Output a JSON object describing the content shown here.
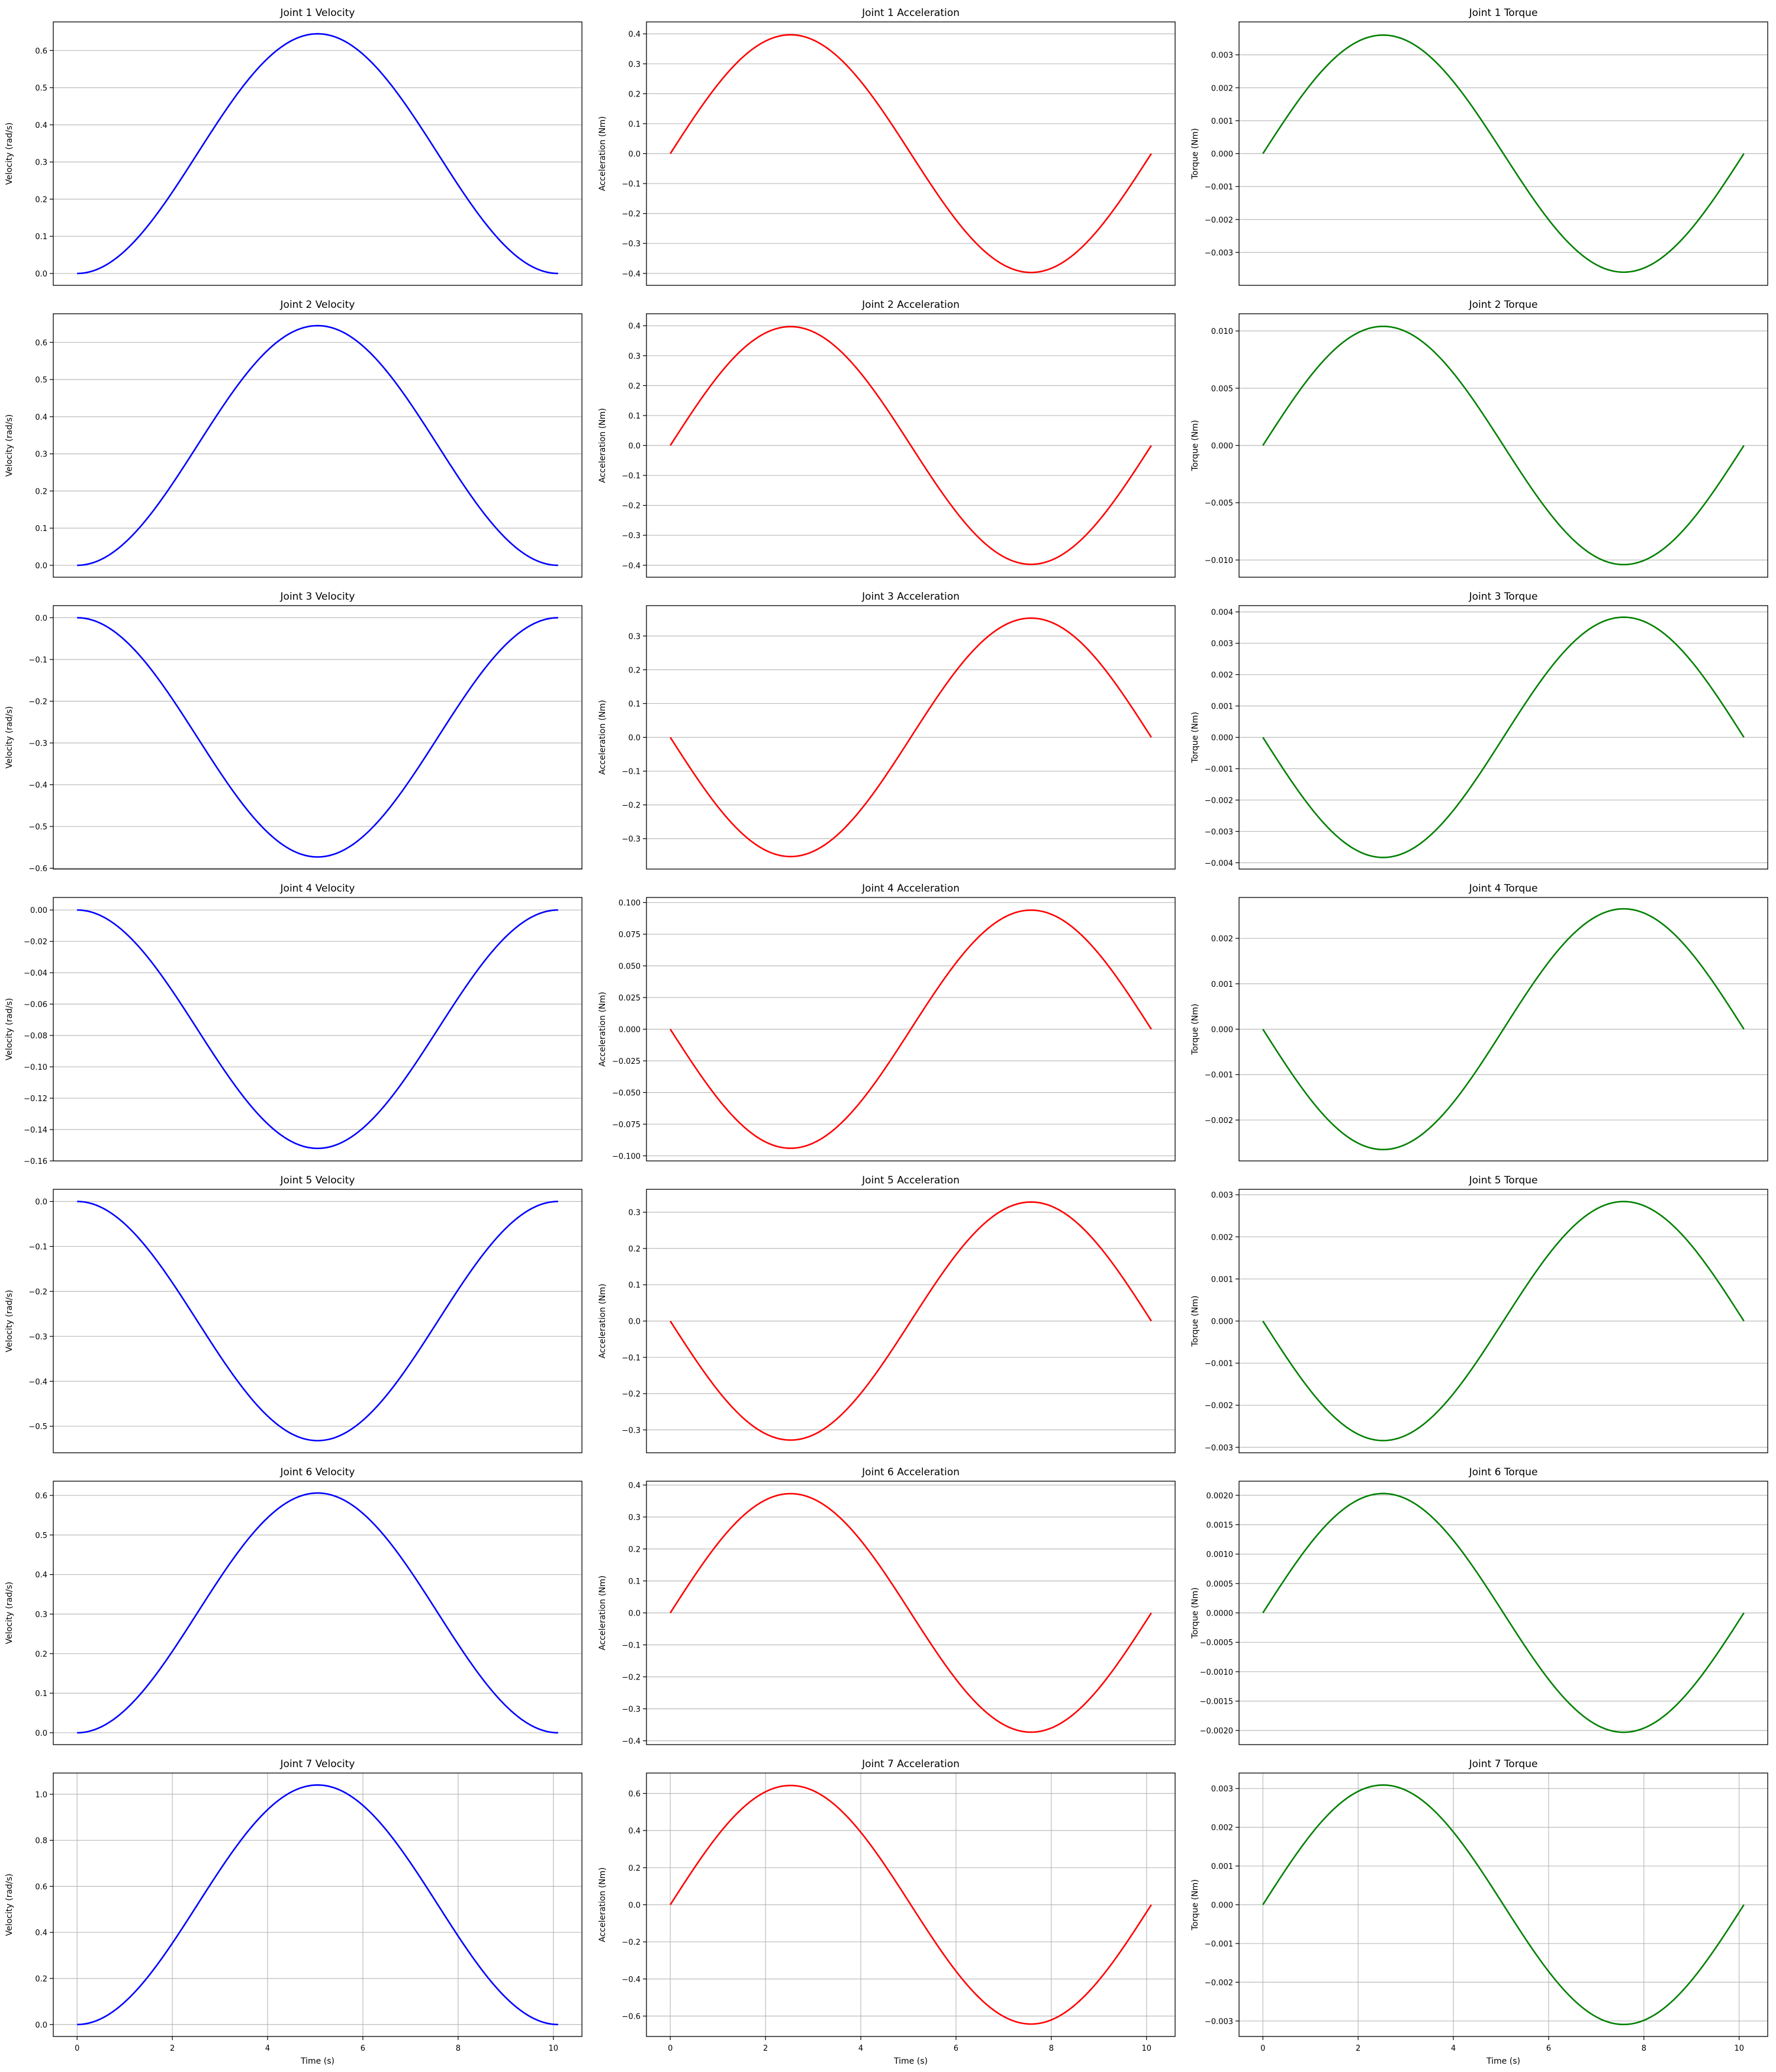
{
  "chart_data": {
    "type": "line",
    "layout": "7 rows x 3 columns",
    "sharex": true,
    "grid": true,
    "x_label_bottom_row": "Time (s)",
    "x_ticks": [
      0,
      2,
      4,
      6,
      8,
      10
    ],
    "xlim": [
      -0.5,
      10.6
    ],
    "x_domain": [
      0,
      10.1
    ],
    "colors": {
      "velocity": "#0000ff",
      "acceleration": "#ff0000",
      "torque": "#008000"
    },
    "panels": [
      {
        "title": "Joint 1 Velocity",
        "ylabel": "Velocity (rad/s)",
        "shape": "velocity_bump",
        "peak": 0.645,
        "ylim": [
          -0.032,
          0.677
        ],
        "yticks": [
          "0.0",
          "0.1",
          "0.2",
          "0.3",
          "0.4",
          "0.5",
          "0.6"
        ],
        "color": "#0000ff"
      },
      {
        "title": "Joint 1 Acceleration",
        "ylabel": "Acceleration (Nm)",
        "shape": "sine_cycle",
        "peak": 0.397,
        "ylim": [
          -0.44,
          0.44
        ],
        "yticks": [
          "−0.4",
          "−0.3",
          "−0.2",
          "−0.1",
          "0.0",
          "0.1",
          "0.2",
          "0.3",
          "0.4"
        ],
        "color": "#ff0000"
      },
      {
        "title": "Joint 1 Torque",
        "ylabel": "Torque (Nm)",
        "shape": "sine_cycle",
        "peak": 0.0036,
        "ylim": [
          -0.004,
          0.004
        ],
        "yticks": [
          "−0.003",
          "−0.002",
          "−0.001",
          "0.000",
          "0.001",
          "0.002",
          "0.003"
        ],
        "color": "#008000"
      },
      {
        "title": "Joint 2 Velocity",
        "ylabel": "Velocity (rad/s)",
        "shape": "velocity_bump",
        "peak": 0.645,
        "ylim": [
          -0.032,
          0.677
        ],
        "yticks": [
          "0.0",
          "0.1",
          "0.2",
          "0.3",
          "0.4",
          "0.5",
          "0.6"
        ],
        "color": "#0000ff"
      },
      {
        "title": "Joint 2 Acceleration",
        "ylabel": "Acceleration (Nm)",
        "shape": "sine_cycle",
        "peak": 0.397,
        "ylim": [
          -0.44,
          0.44
        ],
        "yticks": [
          "−0.4",
          "−0.3",
          "−0.2",
          "−0.1",
          "0.0",
          "0.1",
          "0.2",
          "0.3",
          "0.4"
        ],
        "color": "#ff0000"
      },
      {
        "title": "Joint 2 Torque",
        "ylabel": "Torque (Nm)",
        "shape": "sine_cycle",
        "peak": 0.0104,
        "ylim": [
          -0.0115,
          0.0115
        ],
        "yticks": [
          "−0.010",
          "−0.005",
          "0.000",
          "0.005",
          "0.010"
        ],
        "color": "#008000"
      },
      {
        "title": "Joint 3 Velocity",
        "ylabel": "Velocity (rad/s)",
        "shape": "velocity_bump",
        "peak": -0.573,
        "ylim": [
          -0.602,
          0.029
        ],
        "yticks": [
          "−0.6",
          "−0.5",
          "−0.4",
          "−0.3",
          "−0.2",
          "−0.1",
          "0.0"
        ],
        "color": "#0000ff"
      },
      {
        "title": "Joint 3 Acceleration",
        "ylabel": "Acceleration (Nm)",
        "shape": "sine_cycle",
        "peak": -0.353,
        "ylim": [
          -0.39,
          0.39
        ],
        "yticks": [
          "−0.3",
          "−0.2",
          "−0.1",
          "0.0",
          "0.1",
          "0.2",
          "0.3"
        ],
        "color": "#ff0000"
      },
      {
        "title": "Joint 3 Torque",
        "ylabel": "Torque (Nm)",
        "shape": "sine_cycle",
        "peak": -0.00383,
        "ylim": [
          -0.0042,
          0.0042
        ],
        "yticks": [
          "−0.004",
          "−0.003",
          "−0.002",
          "−0.001",
          "0.000",
          "0.001",
          "0.002",
          "0.003",
          "0.004"
        ],
        "color": "#008000"
      },
      {
        "title": "Joint 4 Velocity",
        "ylabel": "Velocity (rad/s)",
        "shape": "velocity_bump",
        "peak": -0.152,
        "ylim": [
          -0.16,
          0.008
        ],
        "yticks": [
          "−0.16",
          "−0.14",
          "−0.12",
          "−0.10",
          "−0.08",
          "−0.06",
          "−0.04",
          "−0.02",
          "0.00"
        ],
        "color": "#0000ff"
      },
      {
        "title": "Joint 4 Acceleration",
        "ylabel": "Acceleration (Nm)",
        "shape": "sine_cycle",
        "peak": -0.094,
        "ylim": [
          -0.104,
          0.104
        ],
        "yticks": [
          "−0.100",
          "−0.075",
          "−0.050",
          "−0.025",
          "0.000",
          "0.025",
          "0.050",
          "0.075",
          "0.100"
        ],
        "color": "#ff0000"
      },
      {
        "title": "Joint 4 Torque",
        "ylabel": "Torque (Nm)",
        "shape": "sine_cycle",
        "peak": -0.00265,
        "ylim": [
          -0.0029,
          0.0029
        ],
        "yticks": [
          "−0.002",
          "−0.001",
          "0.000",
          "0.001",
          "0.002"
        ],
        "color": "#008000"
      },
      {
        "title": "Joint 5 Velocity",
        "ylabel": "Velocity (rad/s)",
        "shape": "velocity_bump",
        "peak": -0.532,
        "ylim": [
          -0.559,
          0.027
        ],
        "yticks": [
          "−0.5",
          "−0.4",
          "−0.3",
          "−0.2",
          "−0.1",
          "0.0"
        ],
        "color": "#0000ff"
      },
      {
        "title": "Joint 5 Acceleration",
        "ylabel": "Acceleration (Nm)",
        "shape": "sine_cycle",
        "peak": -0.328,
        "ylim": [
          -0.363,
          0.363
        ],
        "yticks": [
          "−0.3",
          "−0.2",
          "−0.1",
          "0.0",
          "0.1",
          "0.2",
          "0.3"
        ],
        "color": "#ff0000"
      },
      {
        "title": "Joint 5 Torque",
        "ylabel": "Torque (Nm)",
        "shape": "sine_cycle",
        "peak": -0.00284,
        "ylim": [
          -0.00313,
          0.00313
        ],
        "yticks": [
          "−0.003",
          "−0.002",
          "−0.001",
          "0.000",
          "0.001",
          "0.002",
          "0.003"
        ],
        "color": "#008000"
      },
      {
        "title": "Joint 6 Velocity",
        "ylabel": "Velocity (rad/s)",
        "shape": "velocity_bump",
        "peak": 0.606,
        "ylim": [
          -0.03,
          0.636
        ],
        "yticks": [
          "0.0",
          "0.1",
          "0.2",
          "0.3",
          "0.4",
          "0.5",
          "0.6"
        ],
        "color": "#0000ff"
      },
      {
        "title": "Joint 6 Acceleration",
        "ylabel": "Acceleration (Nm)",
        "shape": "sine_cycle",
        "peak": 0.373,
        "ylim": [
          -0.412,
          0.412
        ],
        "yticks": [
          "−0.4",
          "−0.3",
          "−0.2",
          "−0.1",
          "0.0",
          "0.1",
          "0.2",
          "0.3",
          "0.4"
        ],
        "color": "#ff0000"
      },
      {
        "title": "Joint 6 Torque",
        "ylabel": "Torque (Nm)",
        "shape": "sine_cycle",
        "peak": 0.00203,
        "ylim": [
          -0.00224,
          0.00224
        ],
        "yticks": [
          "−0.0020",
          "−0.0015",
          "−0.0010",
          "−0.0005",
          "0.0000",
          "0.0005",
          "0.0010",
          "0.0015",
          "0.0020"
        ],
        "color": "#008000"
      },
      {
        "title": "Joint 7 Velocity",
        "ylabel": "Velocity (rad/s)",
        "shape": "velocity_bump",
        "peak": 1.04,
        "ylim": [
          -0.052,
          1.092
        ],
        "yticks": [
          "0.0",
          "0.2",
          "0.4",
          "0.6",
          "0.8",
          "1.0"
        ],
        "color": "#0000ff"
      },
      {
        "title": "Joint 7 Acceleration",
        "ylabel": "Acceleration (Nm)",
        "shape": "sine_cycle",
        "peak": 0.643,
        "ylim": [
          -0.71,
          0.71
        ],
        "yticks": [
          "−0.6",
          "−0.4",
          "−0.2",
          "0.0",
          "0.2",
          "0.4",
          "0.6"
        ],
        "color": "#ff0000"
      },
      {
        "title": "Joint 7 Torque",
        "ylabel": "Torque (Nm)",
        "shape": "sine_cycle",
        "peak": 0.00309,
        "ylim": [
          -0.0034,
          0.0034
        ],
        "yticks": [
          "−0.003",
          "−0.002",
          "−0.001",
          "0.000",
          "0.001",
          "0.002",
          "0.003"
        ],
        "color": "#008000"
      }
    ]
  }
}
